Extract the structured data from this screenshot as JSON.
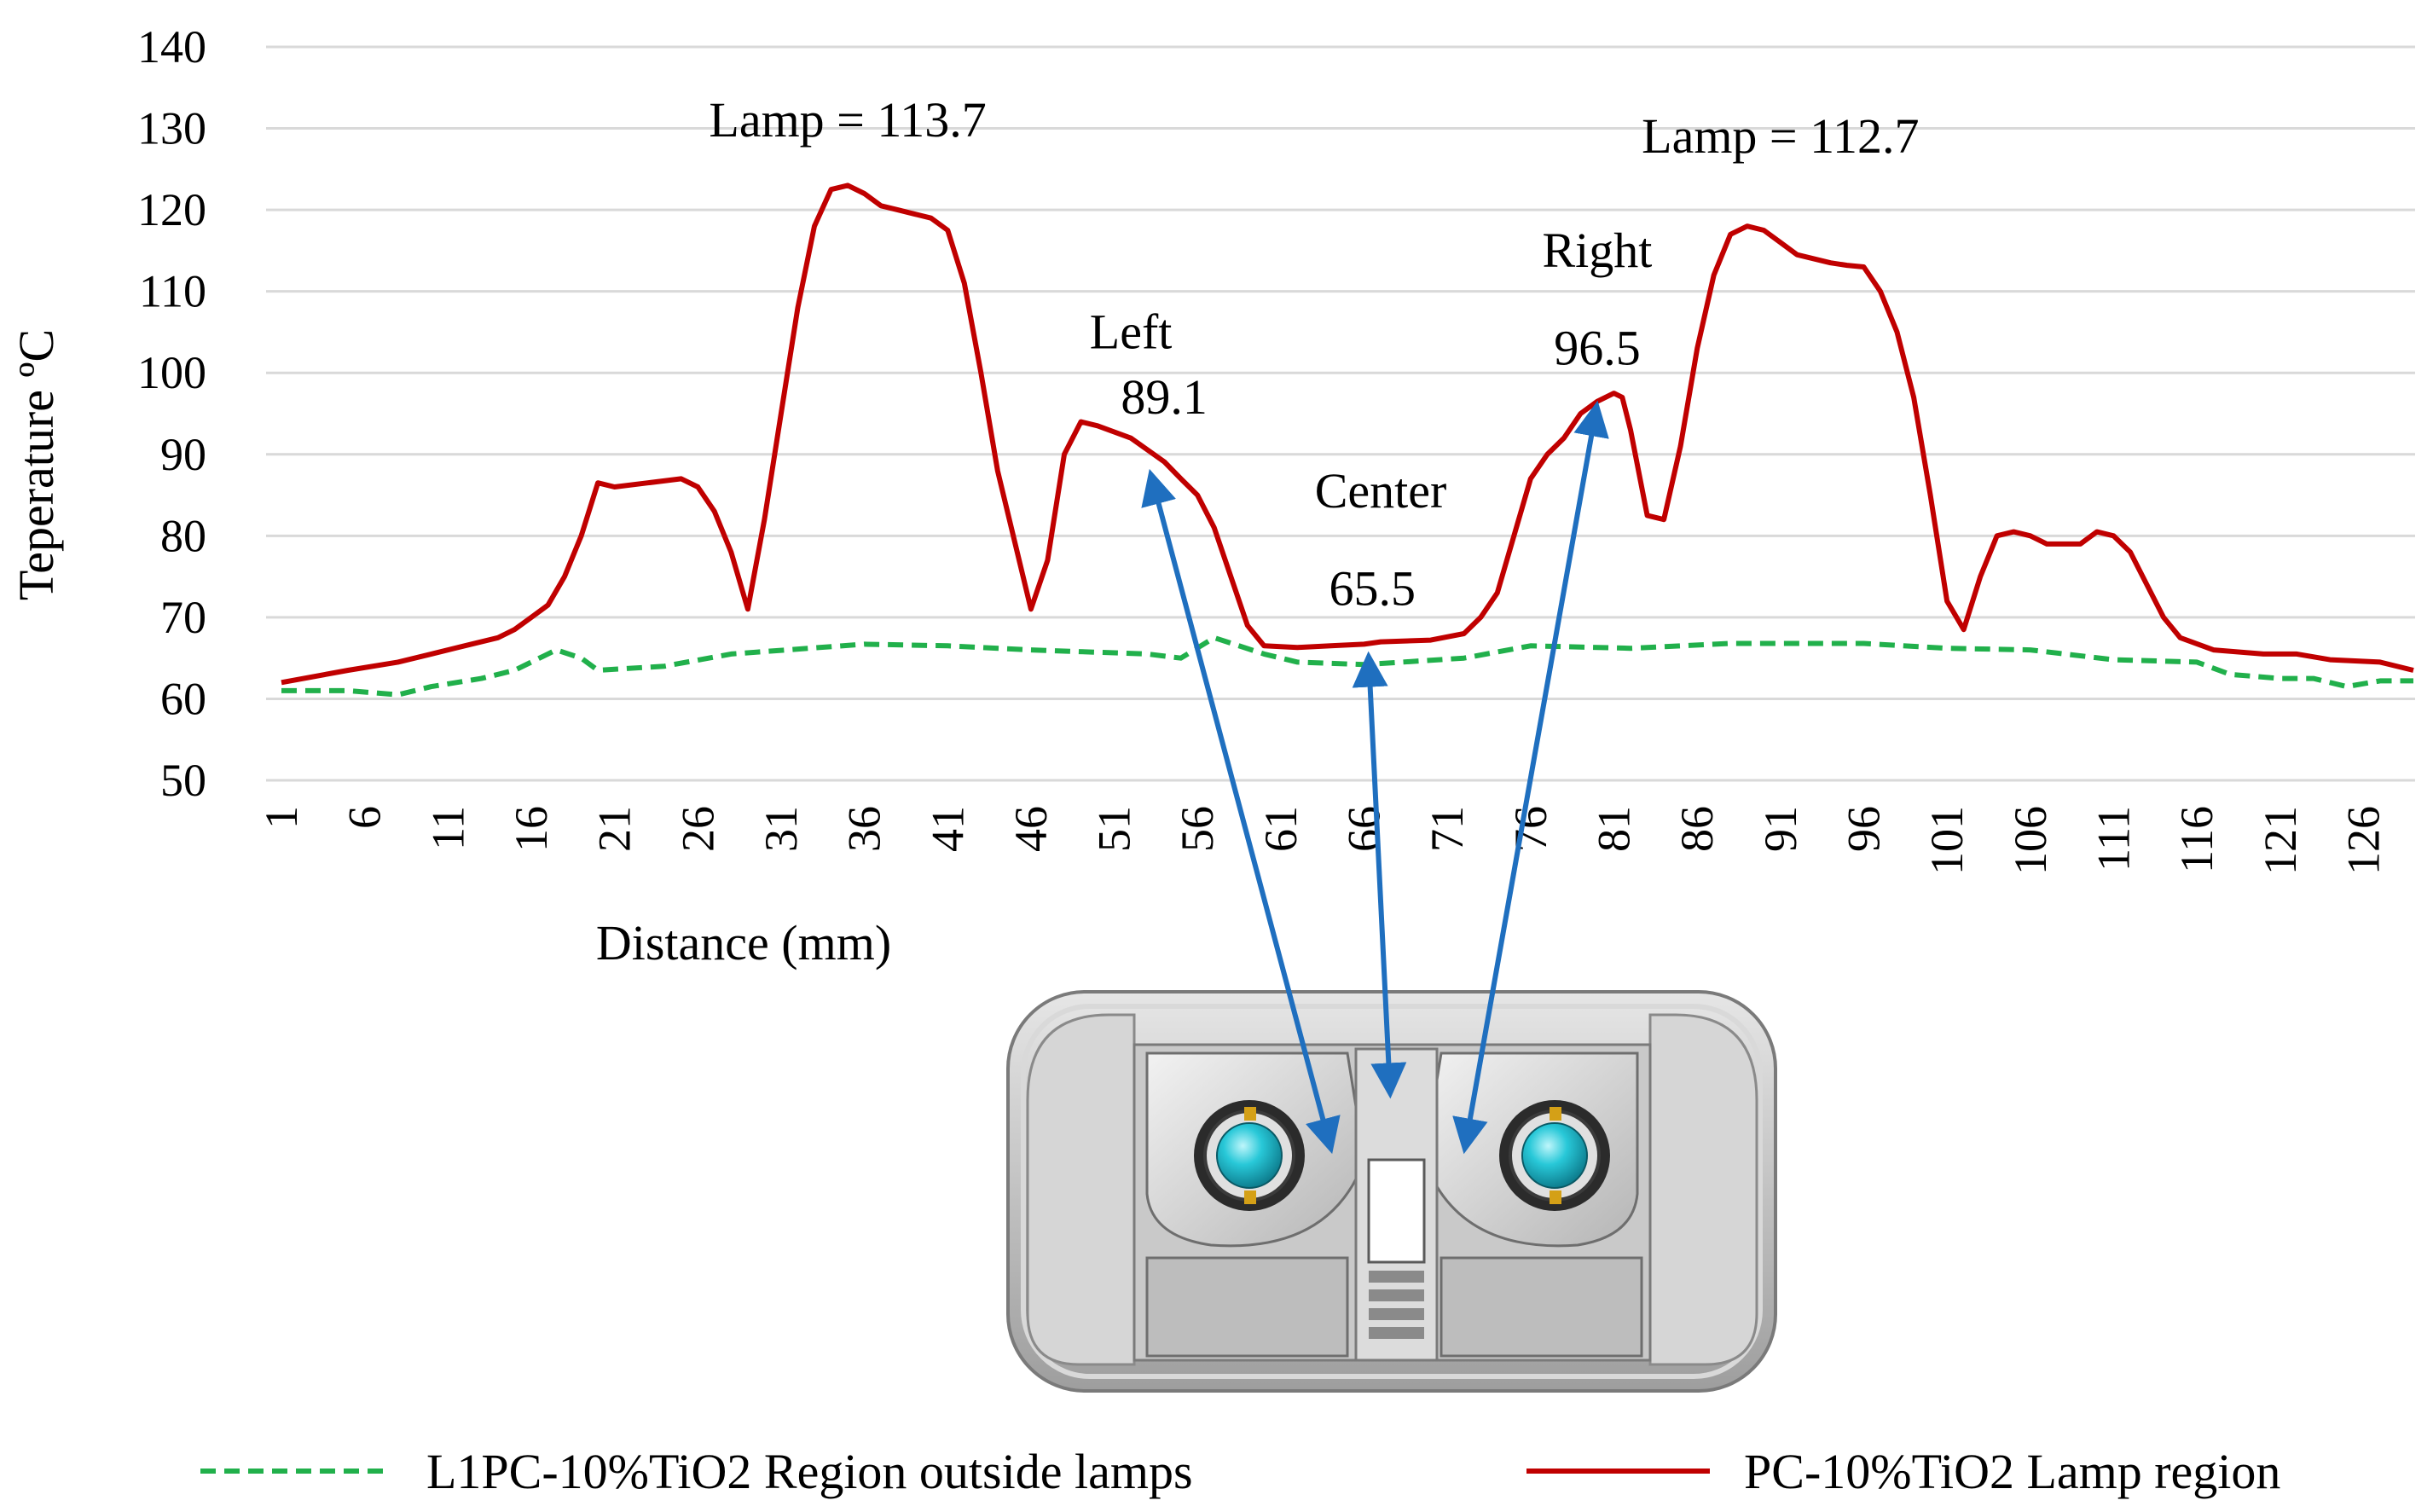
{
  "chart_data": {
    "type": "line",
    "title": "",
    "xlabel": "Distance (mm)",
    "ylabel": "Teperature ºC",
    "ylim": [
      50,
      140
    ],
    "yticks": [
      50,
      60,
      70,
      80,
      90,
      100,
      110,
      120,
      130,
      140
    ],
    "xlim": [
      1,
      129
    ],
    "xticks": [
      "1",
      "6",
      "11",
      "16",
      "21",
      "26",
      "31",
      "36",
      "41",
      "46",
      "51",
      "56",
      "61",
      "66",
      "71",
      "76",
      "81",
      "86",
      "91",
      "96",
      "101",
      "106",
      "111",
      "116",
      "121",
      "126"
    ],
    "grid": "horizontal",
    "legend_position": "bottom",
    "series": [
      {
        "name": "L1PC-10%TiO2 Region outside lamps",
        "color": "#21b04b",
        "style": "dashed",
        "points": [
          [
            1,
            61
          ],
          [
            5,
            61
          ],
          [
            8,
            60.5
          ],
          [
            10,
            61.5
          ],
          [
            13,
            62.5
          ],
          [
            15,
            63.5
          ],
          [
            16,
            64.5
          ],
          [
            17.5,
            66
          ],
          [
            19,
            65
          ],
          [
            20,
            63.5
          ],
          [
            24,
            64
          ],
          [
            28,
            65.5
          ],
          [
            36,
            66.7
          ],
          [
            41,
            66.5
          ],
          [
            46,
            66
          ],
          [
            53,
            65.5
          ],
          [
            55,
            65
          ],
          [
            57,
            67.5
          ],
          [
            60,
            65.5
          ],
          [
            62,
            64.5
          ],
          [
            66,
            64.2
          ],
          [
            72,
            65
          ],
          [
            76,
            66.5
          ],
          [
            82,
            66.2
          ],
          [
            88,
            66.8
          ],
          [
            96,
            66.8
          ],
          [
            101,
            66.2
          ],
          [
            106,
            66
          ],
          [
            111,
            64.8
          ],
          [
            116,
            64.5
          ],
          [
            118,
            63
          ],
          [
            121,
            62.5
          ],
          [
            123,
            62.5
          ],
          [
            125,
            61.5
          ],
          [
            127,
            62.2
          ],
          [
            129,
            62.2
          ]
        ]
      },
      {
        "name": "PC-10%TiO2 Lamp region",
        "color": "#c00000",
        "style": "solid",
        "points": [
          [
            1,
            62
          ],
          [
            5,
            63.5
          ],
          [
            8,
            64.5
          ],
          [
            10,
            65.5
          ],
          [
            12,
            66.5
          ],
          [
            14,
            67.5
          ],
          [
            15,
            68.5
          ],
          [
            16,
            70
          ],
          [
            17,
            71.5
          ],
          [
            18,
            75
          ],
          [
            19,
            80
          ],
          [
            20,
            86.5
          ],
          [
            21,
            86
          ],
          [
            23,
            86.5
          ],
          [
            25,
            87
          ],
          [
            26,
            86
          ],
          [
            27,
            83
          ],
          [
            28,
            78
          ],
          [
            29,
            71
          ],
          [
            30,
            82
          ],
          [
            31,
            95
          ],
          [
            32,
            108
          ],
          [
            33,
            118
          ],
          [
            34,
            122.5
          ],
          [
            35,
            123
          ],
          [
            36,
            122
          ],
          [
            37,
            120.5
          ],
          [
            38,
            120
          ],
          [
            39,
            119.5
          ],
          [
            40,
            119
          ],
          [
            41,
            117.5
          ],
          [
            42,
            111
          ],
          [
            43,
            100
          ],
          [
            44,
            88
          ],
          [
            46,
            71
          ],
          [
            47,
            77
          ],
          [
            48,
            90
          ],
          [
            49,
            94
          ],
          [
            50,
            93.5
          ],
          [
            52,
            92
          ],
          [
            54,
            89.1
          ],
          [
            55,
            87
          ],
          [
            56,
            85
          ],
          [
            57,
            81
          ],
          [
            58,
            75
          ],
          [
            59,
            69
          ],
          [
            60,
            66.5
          ],
          [
            62,
            66.3
          ],
          [
            64,
            66.5
          ],
          [
            66,
            66.7
          ],
          [
            67,
            67
          ],
          [
            70,
            67.2
          ],
          [
            72,
            68
          ],
          [
            73,
            70
          ],
          [
            74,
            73
          ],
          [
            75,
            80
          ],
          [
            76,
            87
          ],
          [
            77,
            90
          ],
          [
            78,
            92
          ],
          [
            79,
            95
          ],
          [
            80,
            96.5
          ],
          [
            81,
            97.5
          ],
          [
            81.5,
            97
          ],
          [
            82,
            93
          ],
          [
            83,
            82.5
          ],
          [
            84,
            82
          ],
          [
            85,
            91
          ],
          [
            86,
            103
          ],
          [
            87,
            112
          ],
          [
            88,
            117
          ],
          [
            89,
            118
          ],
          [
            90,
            117.5
          ],
          [
            91,
            116
          ],
          [
            92,
            114.5
          ],
          [
            94,
            113.5
          ],
          [
            95,
            113.2
          ],
          [
            96,
            113
          ],
          [
            97,
            110
          ],
          [
            98,
            105
          ],
          [
            99,
            97
          ],
          [
            100,
            85
          ],
          [
            101,
            72
          ],
          [
            102,
            68.5
          ],
          [
            103,
            75
          ],
          [
            104,
            80
          ],
          [
            105,
            80.5
          ],
          [
            106,
            80
          ],
          [
            107,
            79
          ],
          [
            109,
            79
          ],
          [
            110,
            80.5
          ],
          [
            111,
            80
          ],
          [
            112,
            78
          ],
          [
            113,
            74
          ],
          [
            114,
            70
          ],
          [
            115,
            67.5
          ],
          [
            117,
            66
          ],
          [
            120,
            65.5
          ],
          [
            122,
            65.5
          ],
          [
            124,
            64.8
          ],
          [
            127,
            64.5
          ],
          [
            129,
            63.5
          ]
        ]
      }
    ],
    "annotations": [
      {
        "text": "Lamp = 113.7",
        "x": 35,
        "y": 129
      },
      {
        "text": "Lamp = 112.7",
        "x": 91,
        "y": 127
      },
      {
        "text": "Right",
        "x": 80,
        "y": 113
      },
      {
        "text": "96.5",
        "x": 80,
        "y": 101
      },
      {
        "text": "Left",
        "x": 52,
        "y": 103
      },
      {
        "text": "89.1",
        "x": 54,
        "y": 95
      },
      {
        "text": "Center",
        "x": 67,
        "y": 83.5
      },
      {
        "text": "65.5",
        "x": 66.5,
        "y": 71.5
      }
    ]
  },
  "lamp_image": {
    "name": "lamp-housing-illustration",
    "colors": {
      "body": "#bfbfbf",
      "bulb": "#28c8d8",
      "arrows": "#1f6fbf"
    }
  }
}
